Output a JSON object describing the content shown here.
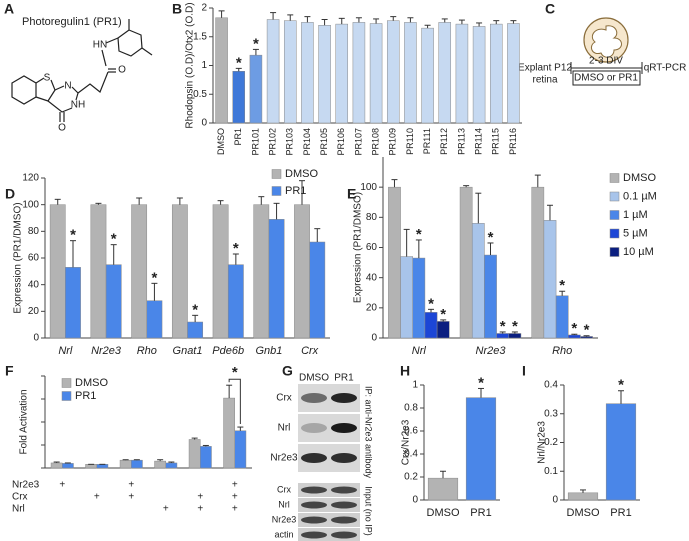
{
  "chart_data": [
    {
      "type": "bar",
      "label": "B",
      "ylabel": "Rhodopsin (O.D)/Otx2 (O.D)",
      "categories": [
        "DMSO",
        "PR1",
        "PR101",
        "PR102",
        "PR103",
        "PR104",
        "PR105",
        "PR106",
        "PR107",
        "PR108",
        "PR109",
        "PR110",
        "PR111",
        "PR112",
        "PR113",
        "PR114",
        "PR115",
        "PR116"
      ],
      "ylim": [
        0,
        2
      ],
      "yticks": [
        0,
        0.5,
        1,
        1.5,
        2
      ],
      "series": [
        {
          "values": [
            1.83,
            0.9,
            1.18,
            1.8,
            1.78,
            1.75,
            1.7,
            1.72,
            1.75,
            1.73,
            1.78,
            1.75,
            1.65,
            1.75,
            1.72,
            1.68,
            1.72,
            1.73
          ],
          "errors": [
            0.12,
            0.05,
            0.1,
            0.12,
            0.1,
            0.1,
            0.1,
            0.1,
            0.08,
            0.08,
            0.07,
            0.08,
            0.05,
            0.06,
            0.07,
            0.06,
            0.06,
            0.05
          ],
          "colors": [
            "#b3b3b3",
            "#3f78d8",
            "#6d9ce3",
            "#c6d9f1",
            "#c6d9f1",
            "#c6d9f1",
            "#c6d9f1",
            "#c6d9f1",
            "#c6d9f1",
            "#c6d9f1",
            "#c6d9f1",
            "#c6d9f1",
            "#c6d9f1",
            "#c6d9f1",
            "#c6d9f1",
            "#c6d9f1",
            "#c6d9f1",
            "#c6d9f1"
          ],
          "labels": [
            null,
            "*",
            "*",
            null,
            null,
            null,
            null,
            null,
            null,
            null,
            null,
            null,
            null,
            null,
            null,
            null,
            null,
            null
          ]
        }
      ]
    },
    {
      "type": "bar",
      "label": "D",
      "ylabel": "Expression (PR1/DMSO)",
      "categories": [
        "Nrl",
        "Nr2e3",
        "Rho",
        "Gnat1",
        "Pde6b",
        "Gnb1",
        "Crx"
      ],
      "ylim": [
        0,
        120
      ],
      "yticks": [
        0,
        20,
        40,
        60,
        80,
        100,
        120
      ],
      "series": [
        {
          "name": "DMSO",
          "color": "#b3b3b3",
          "values": [
            100,
            100,
            100,
            100,
            100,
            100,
            100
          ],
          "errors": [
            4,
            1,
            5,
            5,
            3,
            6,
            18
          ]
        },
        {
          "name": "PR1",
          "color": "#4a86e8",
          "values": [
            53,
            55,
            28,
            12,
            55,
            89,
            72
          ],
          "errors": [
            20,
            15,
            13,
            5,
            8,
            12,
            10
          ],
          "labels": [
            "*",
            "*",
            "*",
            "*",
            "*",
            null,
            null
          ]
        }
      ]
    },
    {
      "type": "bar",
      "label": "E",
      "ylabel": "Expression (PR1/DMSO)",
      "categories": [
        "Nrl",
        "Nr2e3",
        "Rho"
      ],
      "ylim": [
        0,
        120
      ],
      "yticks": [
        0,
        20,
        40,
        60,
        80,
        100
      ],
      "series": [
        {
          "name": "DMSO",
          "color": "#b3b3b3",
          "values": [
            100,
            100,
            100
          ],
          "errors": [
            5,
            1,
            8
          ]
        },
        {
          "name": "0.1 µM",
          "color": "#a8c4ea",
          "values": [
            54,
            76,
            78
          ],
          "errors": [
            18,
            20,
            10
          ]
        },
        {
          "name": "1 µM",
          "color": "#4a86e8",
          "values": [
            53,
            55,
            28
          ],
          "errors": [
            12,
            8,
            3
          ],
          "labels": [
            "*",
            "*",
            "*"
          ]
        },
        {
          "name": "5 µM",
          "color": "#1c46d6",
          "values": [
            17,
            3,
            2
          ],
          "errors": [
            2,
            1,
            0.5
          ],
          "labels": [
            "*",
            "*",
            "*"
          ]
        },
        {
          "name": "10 µM",
          "color": "#0b1f80",
          "values": [
            11,
            3,
            1
          ],
          "errors": [
            1,
            1,
            0.5
          ],
          "labels": [
            "*",
            "*",
            "*"
          ]
        }
      ]
    },
    {
      "type": "bar",
      "label": "F",
      "ylabel": "Fold Activation",
      "categories": [
        null,
        null,
        null,
        null,
        null,
        null
      ],
      "ylim": [
        0,
        200
      ],
      "yticks": [
        0,
        50,
        100,
        150,
        200
      ],
      "ytick_labels": false,
      "bracket": true,
      "conditions": [
        {
          "name": "Nr2e3",
          "marks": [
            "+",
            null,
            "+",
            null,
            null,
            "+"
          ]
        },
        {
          "name": "Crx",
          "marks": [
            null,
            "+",
            "+",
            null,
            "+",
            "+"
          ]
        },
        {
          "name": "Nrl",
          "marks": [
            null,
            null,
            null,
            "+",
            "+",
            "+"
          ]
        }
      ],
      "series": [
        {
          "name": "DMSO",
          "color": "#b3b3b3",
          "values": [
            11,
            8,
            17,
            15,
            62,
            152
          ],
          "errors": [
            2,
            0,
            1,
            3,
            3,
            28
          ]
        },
        {
          "name": "PR1",
          "color": "#4a86e8",
          "values": [
            10,
            8,
            17,
            11,
            47,
            81
          ],
          "errors": [
            1,
            0,
            1,
            2,
            2,
            8
          ],
          "labels": [
            null,
            null,
            null,
            null,
            null,
            "*"
          ]
        }
      ]
    },
    {
      "type": "bar",
      "label": "H",
      "ylabel": "Crx/Nr2e3",
      "categories": [
        "DMSO",
        "PR1"
      ],
      "ylim": [
        0,
        1
      ],
      "yticks": [
        0,
        0.2,
        0.4,
        0.6,
        0.8,
        1
      ],
      "series": [
        {
          "values": [
            0.19,
            0.89
          ],
          "errors": [
            0.06,
            0.08
          ],
          "colors": [
            "#b3b3b3",
            "#4a86e8"
          ],
          "labels": [
            null,
            "*"
          ]
        }
      ]
    },
    {
      "type": "bar",
      "label": "I",
      "ylabel": "Nrl/Nr2e3",
      "categories": [
        "DMSO",
        "PR1"
      ],
      "ylim": [
        0,
        0.4
      ],
      "yticks": [
        0,
        0.1,
        0.2,
        0.3,
        0.4
      ],
      "series": [
        {
          "values": [
            0.025,
            0.335
          ],
          "errors": [
            0.01,
            0.045
          ],
          "colors": [
            "#b3b3b3",
            "#4a86e8"
          ],
          "labels": [
            null,
            "*"
          ]
        }
      ]
    }
  ],
  "panel_a": {
    "label": "A",
    "title": "Photoregulin1 (PR1)",
    "atoms": [
      "S",
      "N",
      "NH",
      "O",
      "O",
      "HN"
    ]
  },
  "panel_c": {
    "label": "C",
    "sample_lines": [
      "Explant P12",
      "retina"
    ],
    "duration": "2-3 DIV",
    "treatment": "DMSO or PR1",
    "readout": "qRT-PCR"
  },
  "panel_g": {
    "label": "G",
    "lanes": [
      "DMSO",
      "PR1"
    ],
    "ip_rows": [
      "Crx",
      "Nrl",
      "Nr2e3"
    ],
    "input_rows": [
      "Crx",
      "Nrl",
      "Nr2e3",
      "actin"
    ],
    "ip_label": "IP: anti-Nr2e3 antibody",
    "input_label": "Input (no IP)"
  }
}
